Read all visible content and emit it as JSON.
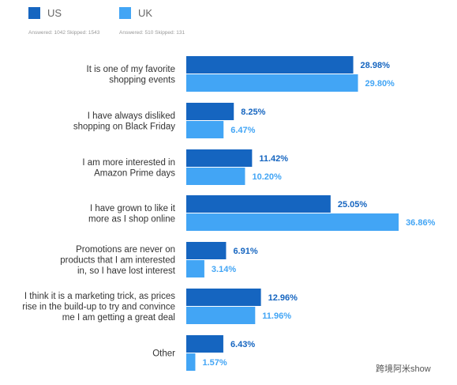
{
  "legend": [
    {
      "name": "US",
      "color": "#1565c0",
      "note": "Answered: 1042  Skipped: 1543"
    },
    {
      "name": "UK",
      "color": "#42a5f5",
      "note": "Answered: 510  Skipped: 131"
    }
  ],
  "watermark": "跨境阿米show",
  "chart_data": {
    "type": "bar",
    "orientation": "horizontal",
    "title": "",
    "xlabel": "",
    "ylabel": "",
    "grid": false,
    "xlim": [
      0,
      38
    ],
    "categories": [
      [
        "It is one of my favorite",
        "shopping events"
      ],
      [
        "I have always disliked",
        "shopping on Black Friday"
      ],
      [
        "I am more interested in",
        "Amazon Prime days"
      ],
      [
        "I have grown to like it",
        "more as I shop online"
      ],
      [
        "Promotions are never on",
        "products that I am interested",
        "in, so I have lost interest"
      ],
      [
        "I think it is a marketing trick, as prices",
        "rise in the build-up to try and convince",
        "me I am getting a great deal"
      ],
      [
        "Other"
      ]
    ],
    "series": [
      {
        "name": "US",
        "color": "#1565c0",
        "values": [
          28.98,
          8.25,
          11.42,
          25.05,
          6.91,
          12.96,
          6.43
        ]
      },
      {
        "name": "UK",
        "color": "#42a5f5",
        "values": [
          29.8,
          6.47,
          10.2,
          36.86,
          3.14,
          11.96,
          1.57
        ]
      }
    ]
  }
}
